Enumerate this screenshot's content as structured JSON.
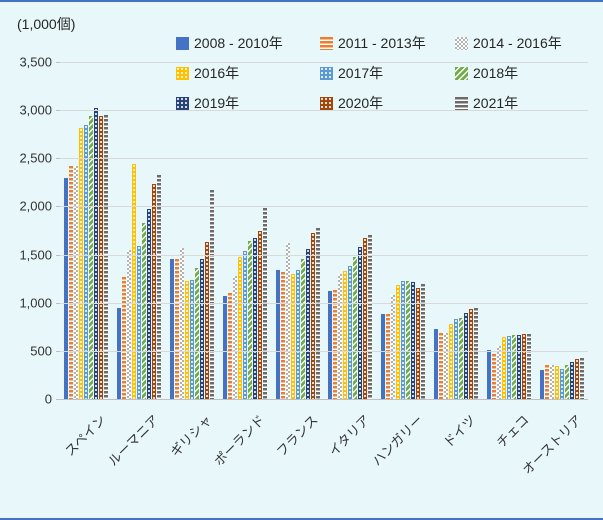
{
  "page": {
    "background_color": "#E8F7FA",
    "border_line_color": "#4472C4",
    "gridline_color": "#D9D9D9",
    "axis_line_color": "#BFBFBF",
    "text_color": "#262626",
    "unit_label": "(1,000個)"
  },
  "chart_data": {
    "type": "bar",
    "title": "(1,000個)",
    "xlabel": "",
    "ylabel": "(1,000個)",
    "ylim": [
      0,
      3500
    ],
    "ytick_interval": 500,
    "ytick_labels": [
      "0",
      "500",
      "1,000",
      "1,500",
      "2,000",
      "2,500",
      "3,000",
      "3,500"
    ],
    "grid": true,
    "legend_position": "top",
    "categories": [
      "スペイン",
      "ルーマニア",
      "ギリシャ",
      "ポーランド",
      "フランス",
      "イタリア",
      "ハンガリー",
      "ドイツ",
      "チェコ",
      "オーストリア"
    ],
    "series": [
      {
        "name": "2008 - 2010年",
        "color": "#4472C4",
        "pattern": "solid",
        "values": [
          2300,
          950,
          1450,
          1070,
          1340,
          1120,
          880,
          730,
          510,
          300
        ]
      },
      {
        "name": "2011 - 2013年",
        "color": "#ED7D31",
        "pattern": "hstripe",
        "values": [
          2420,
          1270,
          1450,
          1100,
          1320,
          1130,
          880,
          690,
          470,
          350
        ]
      },
      {
        "name": "2014 - 2016年",
        "color": "#B3B3B3",
        "pattern": "checker",
        "values": [
          2420,
          1550,
          1570,
          1280,
          1620,
          1300,
          1080,
          690,
          550,
          350
        ]
      },
      {
        "name": "2016年",
        "color": "#FFC000",
        "pattern": "dot",
        "values": [
          2810,
          2440,
          1230,
          1470,
          1300,
          1330,
          1180,
          780,
          640,
          340
        ]
      },
      {
        "name": "2017年",
        "color": "#5B9BD5",
        "pattern": "dot",
        "values": [
          2850,
          1590,
          1240,
          1540,
          1340,
          1380,
          1230,
          830,
          650,
          310
        ]
      },
      {
        "name": "2018年",
        "color": "#70AD47",
        "pattern": "dstripe",
        "values": [
          2940,
          1830,
          1360,
          1640,
          1450,
          1480,
          1230,
          840,
          660,
          350
        ]
      },
      {
        "name": "2019年",
        "color": "#264478",
        "pattern": "dot",
        "values": [
          3020,
          1970,
          1450,
          1670,
          1560,
          1580,
          1220,
          890,
          670,
          380
        ]
      },
      {
        "name": "2020年",
        "color": "#9E480E",
        "pattern": "dot",
        "values": [
          2940,
          2230,
          1630,
          1750,
          1720,
          1670,
          1150,
          930,
          680,
          420
        ]
      },
      {
        "name": "2021年",
        "color": "#6B6B6B",
        "pattern": "hstripe",
        "values": [
          2950,
          2330,
          2170,
          1980,
          1780,
          1700,
          1190,
          950,
          680,
          430
        ]
      }
    ]
  }
}
